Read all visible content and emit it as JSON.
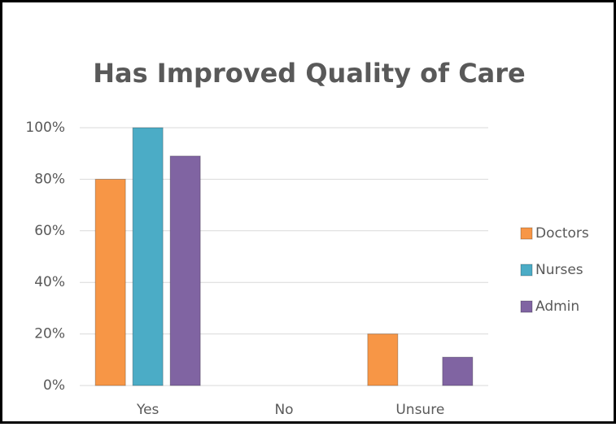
{
  "chart_data": {
    "type": "bar",
    "title": "Has Improved Quality of Care",
    "categories": [
      "Yes",
      "No",
      "Unsure"
    ],
    "series": [
      {
        "name": "Doctors",
        "color": "#f79646",
        "values": [
          80,
          0,
          20
        ]
      },
      {
        "name": "Nurses",
        "color": "#4bacc6",
        "values": [
          100,
          0,
          0
        ]
      },
      {
        "name": "Admin",
        "color": "#8064a2",
        "values": [
          89,
          0,
          11
        ]
      }
    ],
    "ylim": [
      0,
      100
    ],
    "yticks": [
      {
        "value": 0,
        "label": "0%"
      },
      {
        "value": 20,
        "label": "20%"
      },
      {
        "value": 40,
        "label": "40%"
      },
      {
        "value": 60,
        "label": "60%"
      },
      {
        "value": 80,
        "label": "80%"
      },
      {
        "value": 100,
        "label": "100%"
      }
    ],
    "grid": true,
    "legend": "right"
  }
}
